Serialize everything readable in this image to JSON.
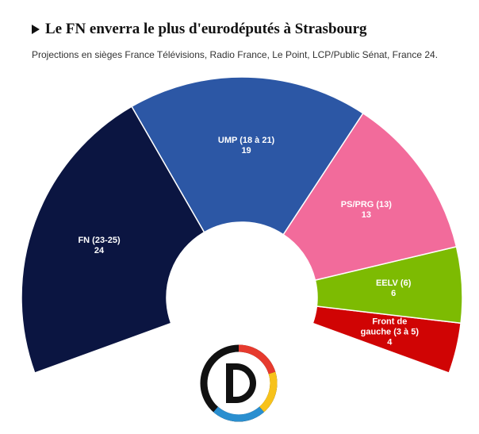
{
  "chart_data": {
    "type": "pie",
    "title": "Le FN enverra le plus d'eurodéputés à Strasbourg",
    "subtitle": "Projections en sièges France Télévisions, Radio France, Le Point, LCP/Public Sénat, France 24.",
    "categories": [
      "FN (23-25)",
      "UMP (18 à 21)",
      "PS/PRG (13)",
      "EELV (6)",
      "Front de gauche (3 à 5)"
    ],
    "values": [
      24,
      19,
      13,
      6,
      4
    ],
    "colors": [
      "#0b1541",
      "#2c57a5",
      "#f26b9b",
      "#7dbb02",
      "#d00404"
    ]
  }
}
